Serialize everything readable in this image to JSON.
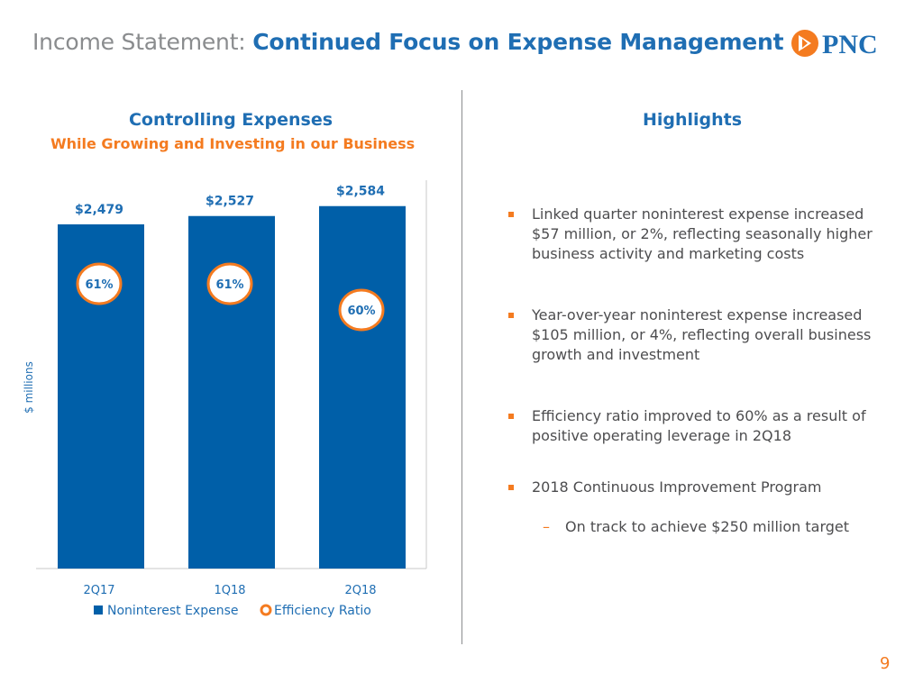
{
  "header": {
    "title_prefix": "Income Statement:",
    "title_main": "Continued Focus on Expense Management",
    "logo_text": "PNC"
  },
  "chart_section": {
    "title": "Controlling Expenses",
    "subtitle": "While Growing and Investing in our Business"
  },
  "chart_data": {
    "type": "bar",
    "categories": [
      "2Q17",
      "1Q18",
      "2Q18"
    ],
    "series": [
      {
        "name": "Noninterest Expense",
        "values": [
          2479,
          2527,
          2584
        ],
        "labels": [
          "$2,479",
          "$2,527",
          "$2,584"
        ]
      },
      {
        "name": "Efficiency Ratio",
        "values": [
          61,
          61,
          60
        ],
        "labels": [
          "61%",
          "61%",
          "60%"
        ]
      }
    ],
    "ylabel": "$ millions",
    "legend_position": "bottom",
    "colors": {
      "bar": "#005fa8",
      "ratio": "#f47b20"
    }
  },
  "highlights": {
    "title": "Highlights",
    "bullets": [
      "Linked quarter noninterest expense increased $57 million, or 2%, reflecting seasonally higher business activity and marketing costs",
      "Year-over-year noninterest expense increased $105 million, or 4%, reflecting overall business growth and investment",
      "Efficiency ratio improved to 60% as a result of positive operating leverage in 2Q18",
      "2018 Continuous Improvement Program"
    ],
    "sub_bullets": [
      "On track to achieve $250 million target"
    ]
  },
  "footer": {
    "page_number": "9"
  },
  "colors": {
    "blue": "#1f6eb3",
    "orange": "#f47b20",
    "gray": "#8a8c8e"
  }
}
